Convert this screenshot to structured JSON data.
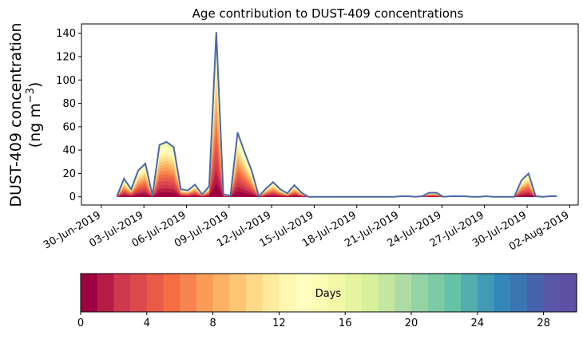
{
  "chart_data": {
    "type": "area",
    "stacked": true,
    "title": "Age contribution to DUST-409 concentrations",
    "ylabel_line1": "DUST-409 concentration",
    "ylabel_line2_prefix": "(ng m",
    "ylabel_line2_sup": "−3",
    "ylabel_line2_suffix": ")",
    "ylim": [
      -7,
      148
    ],
    "yticks": [
      0,
      20,
      40,
      60,
      80,
      100,
      120,
      140
    ],
    "xlim": [
      -1.4,
      33.6
    ],
    "xtick_positions": [
      0,
      3,
      6,
      9,
      12,
      15,
      18,
      21,
      24,
      27,
      30,
      33
    ],
    "xtick_labels": [
      "30-Jun-2019",
      "03-Jul-2019",
      "06-Jul-2019",
      "09-Jul-2019",
      "12-Jul-2019",
      "15-Jul-2019",
      "18-Jul-2019",
      "21-Jul-2019",
      "24-Jul-2019",
      "27-Jul-2019",
      "30-Jul-2019",
      "02-Aug-2019"
    ],
    "x_note": "x values are days since 30-Jun-2019",
    "total_x": [
      1.1,
      1.6,
      2.1,
      2.6,
      3.1,
      3.6,
      4.1,
      4.6,
      5.1,
      5.6,
      6.1,
      6.6,
      7.1,
      7.6,
      8.1,
      8.6,
      9.1,
      9.6,
      10.1,
      10.6,
      11.1,
      11.6,
      12.1,
      12.6,
      13.1,
      13.6,
      14.1,
      14.6,
      15.1,
      15.6,
      16.1,
      16.6,
      17.1,
      17.6,
      18.1,
      18.6,
      19.1,
      19.6,
      20.1,
      20.6,
      21.1,
      21.6,
      22.1,
      22.6,
      23.1,
      23.6,
      24.1,
      24.6,
      25.1,
      25.6,
      26.1,
      26.6,
      27.1,
      27.6,
      28.1,
      28.6,
      29.1,
      29.6,
      30.1,
      30.6,
      31.1,
      31.6,
      32.1
    ],
    "total_y": [
      0.5,
      15.5,
      6.5,
      22.5,
      28.5,
      1.0,
      44.5,
      47.0,
      42.5,
      6.5,
      5.5,
      10.5,
      2.0,
      9.0,
      141.0,
      2.0,
      1.0,
      55.0,
      38.0,
      22.0,
      0.5,
      7.0,
      12.5,
      6.5,
      3.0,
      10.0,
      3.5,
      0.0,
      0.0,
      0.0,
      0.0,
      0.0,
      0.0,
      0.0,
      0.0,
      0.0,
      0.0,
      0.0,
      0.0,
      0.0,
      0.5,
      0.5,
      0.0,
      0.5,
      3.5,
      3.5,
      0.0,
      0.5,
      0.5,
      0.5,
      0.0,
      0.0,
      0.5,
      0.0,
      0.0,
      0.0,
      0.0,
      14.0,
      20.0,
      0.5,
      0.0,
      0.5,
      0.5
    ],
    "age_bands": {
      "count": 30,
      "unit": "Days",
      "ticks": [
        0,
        4,
        8,
        12,
        16,
        20,
        24,
        28
      ],
      "colors": [
        "#9e0142",
        "#b71c47",
        "#d0384d",
        "#dc4a4c",
        "#e95b47",
        "#f46d43",
        "#f7844e",
        "#fa9b58",
        "#fcb163",
        "#fdc574",
        "#fed988",
        "#feea9b",
        "#fff6b0",
        "#fffebe",
        "#f9fcb5",
        "#f1f9a9",
        "#e7f49f",
        "#d8ef9b",
        "#c3e6a0",
        "#acdca4",
        "#94d3a4",
        "#7dcaa5",
        "#66c2a5",
        "#54aead",
        "#429bb4",
        "#3387bb",
        "#3d75b2",
        "#4863ab",
        "#5a56a5",
        "#5e4fa2"
      ]
    },
    "line_color": "#4a68a8",
    "colorbar_label": "Days"
  }
}
